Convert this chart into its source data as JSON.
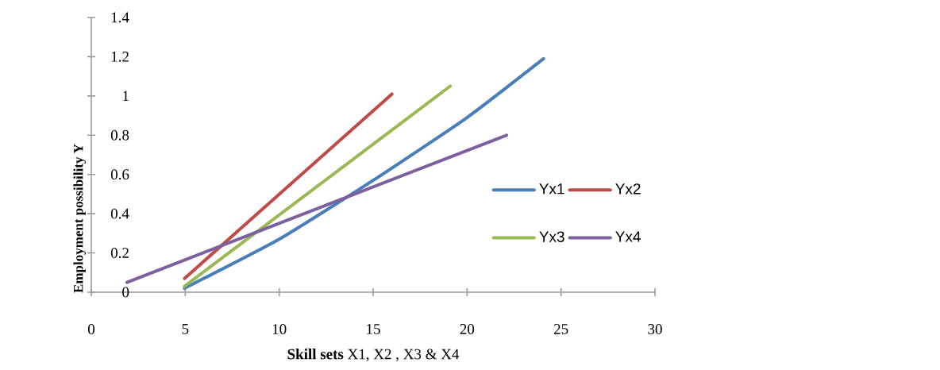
{
  "chart_data": {
    "type": "line",
    "xlabel": "**Skill sets** X1, X2 , X3 & X4",
    "ylabel": "Employment possibility Y",
    "xlim": [
      0,
      30
    ],
    "xticks": [
      0,
      5,
      10,
      15,
      20,
      25,
      30
    ],
    "ylim": [
      0,
      1.4
    ],
    "yticks": [
      0,
      0.2,
      0.4,
      0.6,
      0.8,
      1,
      1.2,
      1.4
    ],
    "legend": "right",
    "series": [
      {
        "name": "Yx1",
        "color": "#4a7ebb",
        "x": [
          4.96,
          10,
          15,
          20,
          24.07
        ],
        "values": [
          0.02,
          0.27,
          0.57,
          0.89,
          1.19
        ]
      },
      {
        "name": "Yx2",
        "color": "#be4b48",
        "x": [
          4.96,
          16.0
        ],
        "values": [
          0.07,
          1.01
        ]
      },
      {
        "name": "Yx3",
        "color": "#98b954",
        "x": [
          4.96,
          19.1
        ],
        "values": [
          0.03,
          1.05
        ]
      },
      {
        "name": "Yx4",
        "color": "#7d60a0",
        "x": [
          1.9,
          22.1
        ],
        "values": [
          0.05,
          0.8
        ]
      }
    ]
  }
}
